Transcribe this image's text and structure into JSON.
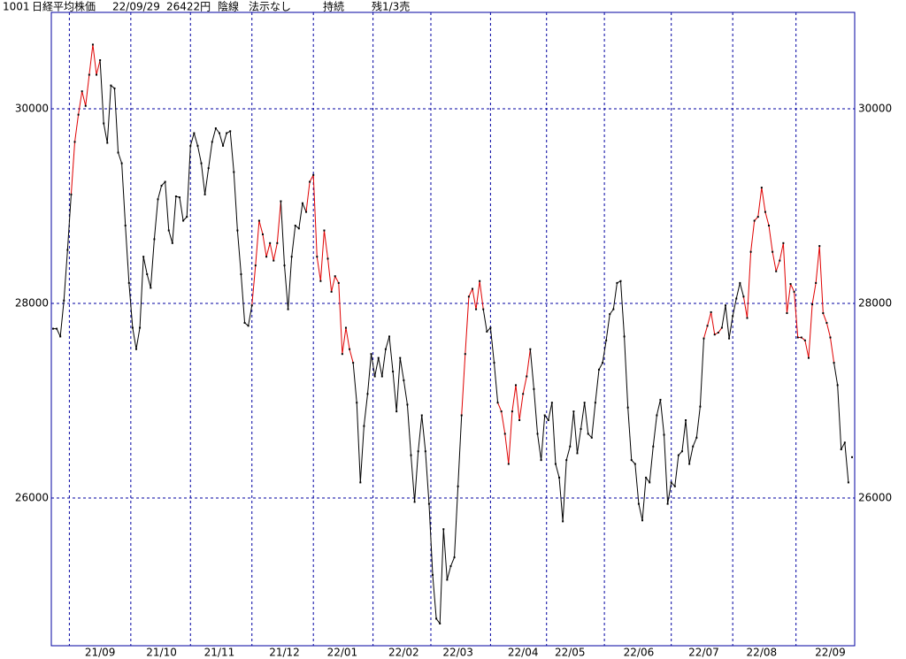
{
  "chart_data": {
    "type": "line",
    "header": [
      "1001",
      "日経平均株価",
      "22/09/29",
      "26422円",
      "陰線",
      "法示なし",
      "持続",
      "残1/3売"
    ],
    "categories": [
      null,
      null,
      null,
      null,
      null,
      null,
      null,
      null,
      null,
      null,
      null,
      null,
      null,
      "21/09",
      null,
      null,
      null,
      null,
      null,
      null,
      null,
      null,
      null,
      null,
      null,
      null,
      null,
      null,
      null,
      null,
      "21/10",
      null,
      null,
      null,
      null,
      null,
      null,
      null,
      null,
      null,
      null,
      null,
      null,
      null,
      null,
      null,
      "21/11",
      null,
      null,
      null,
      null,
      null,
      null,
      null,
      null,
      null,
      null,
      null,
      null,
      null,
      null,
      null,
      null,
      null,
      "21/12",
      null,
      null,
      null,
      null,
      null,
      null,
      null,
      null,
      null,
      null,
      null,
      null,
      null,
      null,
      null,
      "22/01",
      null,
      null,
      null,
      null,
      null,
      null,
      null,
      null,
      null,
      null,
      null,
      null,
      null,
      null,
      null,
      null,
      "22/02",
      null,
      null,
      null,
      null,
      null,
      null,
      null,
      null,
      null,
      null,
      null,
      null,
      null,
      null,
      "22/03",
      null,
      null,
      null,
      null,
      null,
      null,
      null,
      null,
      null,
      null,
      null,
      null,
      null,
      null,
      null,
      null,
      null,
      "22/04",
      null,
      null,
      null,
      null,
      null,
      null,
      null,
      null,
      null,
      null,
      null,
      null,
      "22/05",
      null,
      null,
      null,
      null,
      null,
      null,
      null,
      null,
      null,
      null,
      null,
      null,
      null,
      null,
      null,
      null,
      null,
      null,
      "22/06",
      null,
      null,
      null,
      null,
      null,
      null,
      null,
      null,
      null,
      null,
      null,
      null,
      null,
      null,
      null,
      null,
      null,
      "22/07",
      null,
      null,
      null,
      null,
      null,
      null,
      null,
      null,
      null,
      null,
      null,
      null,
      null,
      null,
      null,
      "22/08",
      null,
      null,
      null,
      null,
      null,
      null,
      null,
      null,
      null,
      null,
      null,
      null,
      null,
      null,
      null,
      null,
      null,
      null,
      "22/09",
      null,
      null,
      null,
      null,
      null,
      null
    ],
    "values": [
      27740,
      27740,
      27660,
      28030,
      28550,
      29120,
      29660,
      29940,
      30180,
      30030,
      30350,
      30660,
      30350,
      30500,
      29850,
      29650,
      30240,
      30210,
      29550,
      29440,
      28800,
      28210,
      27750,
      27530,
      27750,
      28480,
      28300,
      28160,
      28660,
      29070,
      29210,
      29250,
      28750,
      28620,
      29100,
      29090,
      28850,
      28890,
      29620,
      29750,
      29620,
      29440,
      29120,
      29390,
      29660,
      29800,
      29750,
      29620,
      29750,
      29770,
      29350,
      28750,
      28300,
      27800,
      27770,
      27980,
      28390,
      28850,
      28710,
      28480,
      28620,
      28440,
      28620,
      29050,
      28390,
      27940,
      28480,
      28800,
      28770,
      29030,
      28940,
      29250,
      29320,
      28480,
      28230,
      28750,
      28460,
      28120,
      28280,
      28210,
      27480,
      27750,
      27530,
      27390,
      26980,
      26160,
      26740,
      27070,
      27480,
      27250,
      27440,
      27250,
      27530,
      27660,
      27300,
      26890,
      27440,
      27210,
      26960,
      26440,
      25960,
      26480,
      26850,
      26480,
      25940,
      25210,
      24760,
      24710,
      25680,
      25160,
      25300,
      25390,
      26120,
      26850,
      27480,
      28070,
      28150,
      27940,
      28230,
      27940,
      27710,
      27750,
      27390,
      26980,
      26890,
      26660,
      26350,
      26890,
      27160,
      26800,
      27070,
      27250,
      27530,
      27120,
      26660,
      26390,
      26850,
      26800,
      26980,
      26350,
      26210,
      25760,
      26390,
      26530,
      26890,
      26460,
      26710,
      26980,
      26660,
      26620,
      26980,
      27320,
      27390,
      27620,
      27890,
      27940,
      28210,
      28230,
      27660,
      26930,
      26390,
      26350,
      25940,
      25770,
      26210,
      26160,
      26530,
      26850,
      27010,
      26650,
      25940,
      26160,
      26120,
      26440,
      26480,
      26800,
      26350,
      26530,
      26620,
      26940,
      27640,
      27770,
      27910,
      27680,
      27700,
      27750,
      27980,
      27640,
      27870,
      28050,
      28210,
      28070,
      27850,
      28530,
      28850,
      28890,
      29190,
      28940,
      28800,
      28530,
      28330,
      28440,
      28620,
      27900,
      28200,
      28120,
      27650,
      27650,
      27620,
      27440,
      27990,
      28210,
      28590,
      27900,
      27800,
      27650,
      27390,
      27160,
      26500,
      26570,
      26160,
      26420
    ],
    "colors": [
      "#000000",
      "#000000",
      "#000000",
      "#000000",
      "#000000",
      "#000000",
      "#e00000",
      "#e00000",
      "#e00000",
      "#e00000",
      "#e00000",
      "#e00000",
      "#e00000",
      "#e00000",
      "#000000",
      "#000000",
      "#000000",
      "#000000",
      "#000000",
      "#000000",
      "#000000",
      "#000000",
      "#000000",
      "#000000",
      "#000000",
      "#000000",
      "#000000",
      "#000000",
      "#000000",
      "#000000",
      "#000000",
      "#000000",
      "#000000",
      "#000000",
      "#000000",
      "#000000",
      "#000000",
      "#000000",
      "#000000",
      "#000000",
      "#000000",
      "#000000",
      "#000000",
      "#000000",
      "#000000",
      "#000000",
      "#000000",
      "#000000",
      "#000000",
      "#000000",
      "#000000",
      "#000000",
      "#000000",
      "#000000",
      "#000000",
      "#000000",
      "#e00000",
      "#e00000",
      "#e00000",
      "#e00000",
      "#e00000",
      "#e00000",
      "#e00000",
      "#e00000",
      "#000000",
      "#000000",
      "#000000",
      "#000000",
      "#000000",
      "#000000",
      "#000000",
      "#e00000",
      "#e00000",
      "#e00000",
      "#e00000",
      "#e00000",
      "#e00000",
      "#e00000",
      "#e00000",
      "#e00000",
      "#e00000",
      "#e00000",
      "#e00000",
      "#e00000",
      "#000000",
      "#000000",
      "#000000",
      "#000000",
      "#000000",
      "#000000",
      "#000000",
      "#000000",
      "#000000",
      "#000000",
      "#000000",
      "#000000",
      "#000000",
      "#000000",
      "#000000",
      "#000000",
      "#000000",
      "#000000",
      "#000000",
      "#000000",
      "#000000",
      "#000000",
      "#000000",
      "#000000",
      "#000000",
      "#000000",
      "#000000",
      "#000000",
      "#000000",
      "#000000",
      "#e00000",
      "#e00000",
      "#e00000",
      "#e00000",
      "#e00000",
      "#e00000",
      "#000000",
      "#000000",
      "#000000",
      "#000000",
      "#e00000",
      "#e00000",
      "#e00000",
      "#e00000",
      "#e00000",
      "#e00000",
      "#e00000",
      "#e00000",
      "#e00000",
      "#000000",
      "#000000",
      "#000000",
      "#000000",
      "#000000",
      "#000000",
      "#000000",
      "#000000",
      "#000000",
      "#000000",
      "#000000",
      "#000000",
      "#000000",
      "#000000",
      "#000000",
      "#000000",
      "#000000",
      "#000000",
      "#000000",
      "#000000",
      "#000000",
      "#000000",
      "#000000",
      "#000000",
      "#000000",
      "#000000",
      "#000000",
      "#000000",
      "#000000",
      "#000000",
      "#000000",
      "#000000",
      "#000000",
      "#000000",
      "#000000",
      "#000000",
      "#000000",
      "#000000",
      "#000000",
      "#000000",
      "#000000",
      "#000000",
      "#000000",
      "#000000",
      "#000000",
      "#000000",
      "#000000",
      "#000000",
      "#e00000",
      "#e00000",
      "#e00000",
      "#e00000",
      "#e00000",
      "#000000",
      "#000000",
      "#000000",
      "#000000",
      "#000000",
      "#000000",
      "#e00000",
      "#e00000",
      "#e00000",
      "#e00000",
      "#e00000",
      "#e00000",
      "#e00000",
      "#e00000",
      "#e00000",
      "#e00000",
      "#e00000",
      "#e00000",
      "#e00000",
      "#e00000",
      "#e00000",
      "#e00000",
      "#e00000",
      "#e00000",
      "#e00000",
      "#e00000",
      "#e00000",
      "#e00000",
      "#e00000",
      "#e00000",
      "#e00000",
      "#000000",
      "#000000",
      "#000000",
      "#000000"
    ],
    "point_color": "#000000",
    "ylim": [
      24482,
      30991
    ],
    "yticks": [
      26000,
      28000,
      30000
    ],
    "grid": true,
    "grid_color": "#0000a0"
  }
}
